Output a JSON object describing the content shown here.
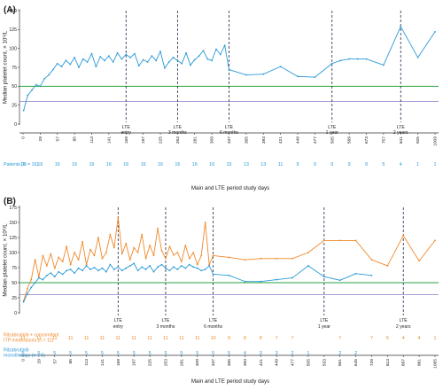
{
  "colors": {
    "blue": "#2b9ad6",
    "orange": "#f0892a",
    "green": "#27a341",
    "purple": "#8b7fc7",
    "dash": "#1f2a4a",
    "axis": "#333333"
  },
  "chart_data": [
    {
      "panel": "(A)",
      "type": "line",
      "ylabel": "Median platelet count, × 10⁹/L",
      "xlabel": "Main and LTE period study days",
      "ylim": [
        0,
        150
      ],
      "yticks": [
        0,
        25,
        50,
        75,
        100,
        125,
        150
      ],
      "reference_lines": [
        50,
        30
      ],
      "xticks": [
        "0",
        "29",
        "57",
        "85",
        "113",
        "141",
        "169",
        "197",
        "225",
        "253",
        "281",
        "309",
        "337",
        "365",
        "393",
        "421",
        "449",
        "477",
        "505",
        "589",
        "673",
        "757",
        "841",
        "925",
        "1009"
      ],
      "lte_markers": [
        {
          "at": 169,
          "lines": [
            "LTE",
            "entry"
          ]
        },
        {
          "at": 253,
          "lines": [
            "LTE",
            "3 months"
          ]
        },
        {
          "at": 337,
          "lines": [
            "LTE",
            "6 months"
          ]
        },
        {
          "at": 505,
          "lines": [
            "LTE",
            "1 year"
          ]
        },
        {
          "at": 841,
          "lines": [
            "LTE",
            "2 years"
          ]
        }
      ],
      "series": [
        {
          "x": [
            1,
            8,
            15,
            22,
            29,
            36,
            43,
            50,
            57,
            64,
            71,
            78,
            85,
            92,
            99,
            106,
            113,
            120,
            127,
            134,
            141,
            148,
            155,
            162,
            169,
            176,
            183,
            190,
            197,
            204,
            211,
            218,
            225,
            232,
            239,
            246,
            253,
            260,
            267,
            274,
            281,
            288,
            295,
            302,
            309,
            316,
            323,
            330,
            337,
            365,
            393,
            421,
            449,
            477,
            505,
            547,
            589,
            631,
            673,
            757,
            841,
            925,
            1009
          ],
          "y": [
            18,
            38,
            45,
            52,
            50,
            60,
            65,
            72,
            80,
            76,
            84,
            79,
            88,
            75,
            86,
            82,
            93,
            76,
            89,
            84,
            90,
            82,
            94,
            86,
            92,
            88,
            93,
            77,
            85,
            82,
            90,
            84,
            96,
            74,
            82,
            88,
            84,
            80,
            94,
            78,
            85,
            90,
            97,
            86,
            84,
            99,
            92,
            104,
            72,
            65,
            66,
            76,
            63,
            62,
            80,
            84,
            86,
            86,
            86,
            78,
            129,
            88,
            122
          ]
        }
      ],
      "counts": {
        "label": "Patients (N = 16)",
        "rows": [
          {
            "at": [
              0,
              29,
              57,
              85,
              113,
              141,
              169,
              197,
              225,
              253,
              281,
              309,
              337,
              365,
              393,
              421,
              449,
              477,
              505,
              589,
              673,
              757,
              841,
              925,
              1009
            ],
            "values": [
              "16",
              "16",
              "16",
              "16",
              "16",
              "16",
              "16",
              "16",
              "16",
              "16",
              "16",
              "16",
              "15",
              "13",
              "13",
              "11",
              "9",
              "9",
              "9",
              "9",
              "9",
              "5",
              "4",
              "1",
              "1"
            ]
          }
        ]
      }
    },
    {
      "panel": "(B)",
      "type": "line",
      "ylabel": "Median platelet count, × 10⁹/L",
      "xlabel": "Main and LTE period study days",
      "ylim": [
        0,
        175
      ],
      "yticks": [
        0,
        25,
        50,
        75,
        100,
        125,
        150,
        175
      ],
      "reference_lines": [
        50,
        30
      ],
      "xticks": [
        "0",
        "29",
        "57",
        "85",
        "113",
        "141",
        "169",
        "197",
        "225",
        "253",
        "281",
        "309",
        "337",
        "365",
        "393",
        "421",
        "449",
        "477",
        "505",
        "533",
        "561",
        "645",
        "729",
        "813",
        "897",
        "981",
        "1065"
      ],
      "lte_markers": [
        {
          "at": 169,
          "lines": [
            "LTE",
            "entry"
          ]
        },
        {
          "at": 253,
          "lines": [
            "LTE",
            "3 months"
          ]
        },
        {
          "at": 337,
          "lines": [
            "LTE",
            "6 months"
          ]
        },
        {
          "at": 533,
          "lines": [
            "LTE",
            "1 year"
          ]
        },
        {
          "at": 897,
          "lines": [
            "LTE",
            "2 years"
          ]
        }
      ],
      "series": [
        {
          "name": "Rilzabrutinib + concomitant ITP medications",
          "x": [
            1,
            8,
            15,
            22,
            29,
            36,
            43,
            50,
            57,
            64,
            71,
            78,
            85,
            92,
            99,
            106,
            113,
            120,
            127,
            134,
            141,
            148,
            155,
            162,
            169,
            176,
            183,
            190,
            197,
            204,
            211,
            218,
            225,
            232,
            239,
            246,
            253,
            260,
            267,
            274,
            281,
            288,
            295,
            302,
            309,
            316,
            323,
            330,
            337,
            365,
            393,
            421,
            449,
            477,
            505,
            533,
            561,
            645,
            729,
            813,
            897,
            981,
            1065
          ],
          "y": [
            20,
            40,
            55,
            88,
            60,
            95,
            78,
            98,
            74,
            92,
            85,
            110,
            80,
            100,
            88,
            118,
            80,
            105,
            95,
            125,
            90,
            100,
            130,
            108,
            158,
            98,
            115,
            88,
            108,
            100,
            130,
            90,
            112,
            95,
            140,
            103,
            90,
            110,
            96,
            100,
            85,
            112,
            90,
            100,
            80,
            95,
            150,
            80,
            95,
            92,
            88,
            90,
            90,
            90,
            100,
            120,
            120,
            120,
            88,
            78,
            128,
            86,
            120
          ]
        },
        {
          "name": "Rilzabrutinib monotherapy",
          "x": [
            1,
            8,
            15,
            22,
            29,
            36,
            43,
            50,
            57,
            64,
            71,
            78,
            85,
            92,
            99,
            106,
            113,
            120,
            127,
            134,
            141,
            148,
            155,
            162,
            169,
            176,
            183,
            190,
            197,
            204,
            211,
            218,
            225,
            232,
            239,
            246,
            253,
            260,
            267,
            274,
            281,
            288,
            295,
            302,
            309,
            316,
            323,
            330,
            337,
            365,
            393,
            421,
            449,
            477,
            505,
            533,
            561,
            645,
            729
          ],
          "y": [
            18,
            32,
            42,
            50,
            58,
            55,
            62,
            66,
            60,
            68,
            64,
            70,
            72,
            66,
            74,
            70,
            78,
            72,
            75,
            70,
            74,
            68,
            80,
            72,
            76,
            70,
            74,
            78,
            82,
            70,
            76,
            72,
            78,
            68,
            76,
            80,
            74,
            70,
            76,
            72,
            78,
            74,
            80,
            76,
            74,
            70,
            72,
            78,
            64,
            62,
            52,
            52,
            55,
            58,
            78,
            60,
            54,
            65,
            62
          ]
        }
      ],
      "counts": {
        "label": "",
        "rows": [
          {
            "label": [
              "Rilzabrutinib + concomitant",
              "ITP medications (n = 11)"
            ],
            "series": 0,
            "at": [
              0,
              29,
              57,
              85,
              113,
              141,
              169,
              197,
              225,
              253,
              281,
              309,
              337,
              365,
              393,
              421,
              449,
              477,
              561,
              729,
              813,
              897,
              981,
              1065
            ],
            "values": [
              "11",
              "11",
              "11",
              "11",
              "11",
              "11",
              "11",
              "11",
              "11",
              "11",
              "11",
              "11",
              "10",
              "9",
              "8",
              "8",
              "7",
              "7",
              "7",
              "7",
              "5",
              "4",
              "4",
              "1"
            ]
          },
          {
            "label": [
              "Rilzabrutinib",
              "monotherapy (n = 5)"
            ],
            "series": 1,
            "at": [
              0,
              29,
              57,
              85,
              113,
              141,
              169,
              197,
              225,
              253,
              281,
              309,
              337,
              365,
              393,
              421,
              449,
              477,
              505,
              561,
              645
            ],
            "values": [
              "5",
              "5",
              "5",
              "5",
              "5",
              "5",
              "5",
              "5",
              "5",
              "5",
              "5",
              "5",
              "5",
              "5",
              "4",
              "3",
              "3",
              "2",
              "1",
              "2",
              "2"
            ]
          }
        ]
      }
    }
  ]
}
